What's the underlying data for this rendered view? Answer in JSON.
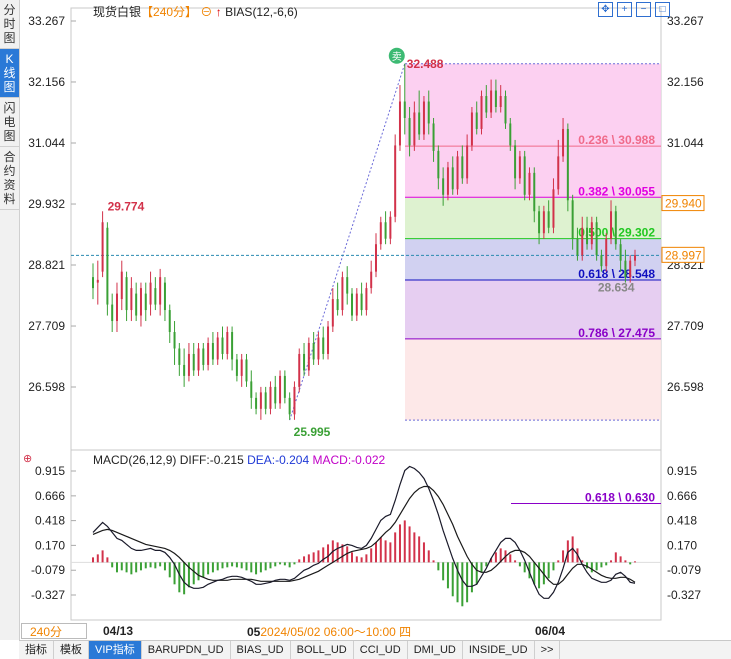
{
  "side_tabs": [
    "分时图",
    "K线图",
    "闪电图",
    "合约资料"
  ],
  "header": {
    "instrument": "现货白银",
    "period": "【240分】",
    "indicator": "BIAS(12,-6,6)"
  },
  "toolbar_icons": [
    "move-icon",
    "zoom-in-icon",
    "zoom-out-icon",
    "fullscreen-icon"
  ],
  "macd_header": {
    "name": "MACD(26,12,9)",
    "diff": "DIFF:-0.215",
    "dea": "DEA:-0.204",
    "macd": "MACD:-0.022"
  },
  "bottom_tabs": [
    "指标",
    "模板",
    "VIP指标",
    "BARUPDN_UD",
    "BIAS_UD",
    "BOLL_UD",
    "CCI_UD",
    "DMI_UD",
    "INSIDE_UD",
    ">>"
  ],
  "period_box": "240分",
  "crosshair_time": "2024/05/02 06:00～10:00 四",
  "x_labels": {
    "left": "04/13",
    "right": "06/04",
    "partial": "05"
  },
  "chart_data": [
    {
      "type": "candlestick",
      "title": "现货白银",
      "yticks": [
        "33.267",
        "32.156",
        "31.044",
        "29.932",
        "28.821",
        "27.709",
        "26.598"
      ],
      "ylim": [
        26.0,
        33.3
      ],
      "annotations": {
        "high": "32.488",
        "low": "25.995",
        "local_high": "29.774",
        "last_cross": "28.634",
        "marker": "卖"
      },
      "price_tags": [
        {
          "value": "29.940",
          "color": "#f08300"
        },
        {
          "value": "28.997",
          "color": "#f08300"
        }
      ],
      "fibonacci": [
        {
          "label": "0.236 \\ 30.988",
          "value": 30.988,
          "color": "#f06a8a",
          "fill": "#fcc8ee"
        },
        {
          "label": "0.382 \\ 30.055",
          "value": 30.055,
          "color": "#e000e0",
          "fill": "#d8f0c8"
        },
        {
          "label": "0.500 \\ 29.302",
          "value": 29.302,
          "color": "#22c822",
          "fill": "#c9c9ee"
        },
        {
          "label": "0.618 \\ 28.548",
          "value": 28.548,
          "color": "#1010c0",
          "fill": "#e2c6ee"
        },
        {
          "label": "0.786 \\ 27.475",
          "value": 27.475,
          "color": "#8a00c8",
          "fill": "#fde4e4"
        }
      ],
      "candles": [
        [
          28.6,
          28.4,
          28.85,
          28.2
        ],
        [
          28.5,
          28.55,
          28.9,
          28.1
        ],
        [
          28.7,
          29.6,
          29.8,
          28.6
        ],
        [
          29.5,
          28.1,
          29.6,
          27.9
        ],
        [
          28.1,
          27.8,
          28.3,
          27.6
        ],
        [
          27.8,
          28.3,
          28.5,
          27.6
        ],
        [
          28.2,
          28.7,
          28.9,
          28.0
        ],
        [
          28.6,
          28.0,
          28.7,
          27.8
        ],
        [
          28.0,
          28.4,
          28.6,
          27.8
        ],
        [
          28.3,
          27.9,
          28.5,
          27.8
        ],
        [
          27.9,
          28.4,
          28.5,
          27.7
        ],
        [
          28.3,
          28.0,
          28.5,
          27.8
        ],
        [
          28.1,
          28.5,
          28.7,
          27.9
        ],
        [
          28.4,
          28.1,
          28.6,
          28.0
        ],
        [
          28.1,
          28.6,
          28.75,
          27.9
        ],
        [
          28.5,
          28.0,
          28.6,
          27.8
        ],
        [
          28.0,
          27.6,
          28.1,
          27.4
        ],
        [
          27.6,
          27.3,
          27.8,
          27.0
        ],
        [
          27.3,
          27.0,
          27.4,
          26.8
        ],
        [
          27.0,
          26.8,
          27.3,
          26.6
        ],
        [
          26.8,
          27.2,
          27.4,
          26.7
        ],
        [
          27.2,
          26.9,
          27.4,
          26.8
        ],
        [
          26.9,
          27.3,
          27.4,
          26.8
        ],
        [
          27.3,
          27.0,
          27.4,
          26.9
        ],
        [
          27.0,
          27.4,
          27.5,
          26.9
        ],
        [
          27.4,
          27.1,
          27.6,
          27.0
        ],
        [
          27.1,
          27.5,
          27.6,
          27.0
        ],
        [
          27.5,
          27.2,
          27.7,
          27.1
        ],
        [
          27.2,
          27.6,
          27.7,
          27.1
        ],
        [
          27.6,
          27.1,
          27.7,
          26.9
        ],
        [
          27.1,
          26.8,
          27.2,
          26.7
        ],
        [
          26.8,
          27.1,
          27.2,
          26.6
        ],
        [
          27.1,
          26.7,
          27.2,
          26.6
        ],
        [
          26.7,
          26.4,
          26.9,
          26.2
        ],
        [
          26.4,
          26.2,
          26.5,
          26.1
        ],
        [
          26.2,
          26.5,
          26.6,
          26.0
        ],
        [
          26.5,
          26.2,
          26.6,
          26.1
        ],
        [
          26.2,
          26.6,
          26.7,
          26.1
        ],
        [
          26.6,
          26.3,
          26.8,
          26.2
        ],
        [
          26.3,
          26.8,
          26.9,
          26.2
        ],
        [
          26.8,
          26.4,
          26.9,
          26.3
        ],
        [
          26.4,
          26.1,
          26.5,
          26.0
        ],
        [
          26.1,
          26.6,
          26.7,
          26.0
        ],
        [
          26.6,
          27.2,
          27.3,
          26.5
        ],
        [
          27.2,
          26.9,
          27.4,
          26.8
        ],
        [
          26.9,
          27.4,
          27.5,
          26.8
        ],
        [
          27.4,
          27.1,
          27.6,
          27.0
        ],
        [
          27.1,
          27.5,
          27.6,
          27.0
        ],
        [
          27.5,
          27.2,
          27.7,
          27.1
        ],
        [
          27.2,
          27.7,
          27.8,
          27.1
        ],
        [
          27.7,
          28.2,
          28.4,
          27.6
        ],
        [
          28.2,
          28.0,
          28.5,
          27.9
        ],
        [
          28.0,
          28.6,
          28.7,
          27.9
        ],
        [
          28.6,
          28.3,
          28.8,
          28.1
        ],
        [
          28.3,
          27.9,
          28.4,
          27.8
        ],
        [
          27.9,
          28.3,
          28.4,
          27.8
        ],
        [
          28.3,
          28.0,
          28.5,
          27.9
        ],
        [
          28.0,
          28.4,
          28.5,
          27.9
        ],
        [
          28.4,
          28.7,
          28.9,
          28.3
        ],
        [
          28.7,
          29.2,
          29.4,
          28.6
        ],
        [
          29.2,
          29.6,
          29.7,
          29.1
        ],
        [
          29.6,
          29.3,
          29.8,
          29.2
        ],
        [
          29.3,
          29.7,
          29.8,
          29.2
        ],
        [
          29.7,
          31.0,
          31.2,
          29.6
        ],
        [
          31.0,
          31.8,
          32.1,
          30.9
        ],
        [
          31.8,
          31.5,
          32.49,
          31.2
        ],
        [
          31.5,
          31.0,
          31.7,
          30.8
        ],
        [
          31.0,
          31.6,
          31.8,
          30.9
        ],
        [
          31.6,
          31.2,
          32.0,
          31.1
        ],
        [
          31.2,
          31.8,
          31.9,
          31.1
        ],
        [
          31.8,
          31.4,
          32.0,
          31.2
        ],
        [
          31.4,
          30.9,
          31.5,
          30.7
        ],
        [
          30.9,
          30.4,
          31.0,
          30.2
        ],
        [
          30.4,
          30.1,
          30.6,
          29.9
        ],
        [
          30.1,
          30.6,
          30.7,
          30.0
        ],
        [
          30.6,
          30.2,
          30.8,
          30.1
        ],
        [
          30.2,
          30.8,
          30.9,
          30.1
        ],
        [
          30.8,
          30.4,
          31.0,
          30.3
        ],
        [
          30.4,
          31.0,
          31.2,
          30.3
        ],
        [
          31.0,
          31.6,
          31.7,
          30.9
        ],
        [
          31.6,
          31.3,
          31.8,
          31.2
        ],
        [
          31.3,
          31.9,
          32.0,
          31.2
        ],
        [
          31.9,
          31.6,
          32.1,
          31.5
        ],
        [
          31.6,
          32.0,
          32.2,
          31.5
        ],
        [
          32.0,
          31.7,
          32.2,
          31.6
        ],
        [
          31.7,
          31.9,
          32.1,
          31.6
        ],
        [
          31.9,
          31.4,
          32.0,
          31.3
        ],
        [
          31.4,
          31.0,
          31.5,
          30.9
        ],
        [
          31.0,
          30.4,
          31.1,
          30.2
        ],
        [
          30.4,
          30.8,
          30.9,
          30.3
        ],
        [
          30.8,
          30.1,
          30.9,
          30.0
        ],
        [
          30.1,
          30.5,
          30.6,
          30.0
        ],
        [
          30.5,
          29.8,
          30.6,
          29.6
        ],
        [
          29.8,
          29.4,
          29.9,
          29.2
        ],
        [
          29.4,
          29.8,
          29.9,
          29.3
        ],
        [
          29.8,
          29.5,
          30.0,
          29.4
        ],
        [
          29.5,
          30.2,
          30.4,
          29.4
        ],
        [
          30.2,
          30.8,
          31.1,
          30.1
        ],
        [
          30.8,
          31.3,
          31.5,
          30.7
        ],
        [
          31.3,
          30.0,
          31.4,
          29.8
        ],
        [
          30.0,
          29.3,
          30.1,
          29.1
        ],
        [
          29.3,
          29.0,
          29.5,
          28.9
        ],
        [
          29.0,
          29.5,
          29.7,
          28.9
        ],
        [
          29.5,
          29.2,
          29.7,
          29.1
        ],
        [
          29.2,
          29.6,
          29.7,
          29.1
        ],
        [
          29.6,
          29.0,
          29.7,
          28.9
        ],
        [
          29.0,
          28.8,
          29.1,
          28.7
        ],
        [
          28.8,
          29.3,
          29.4,
          28.7
        ],
        [
          29.3,
          29.8,
          30.0,
          29.2
        ],
        [
          29.8,
          29.2,
          29.9,
          29.1
        ],
        [
          29.2,
          28.9,
          29.3,
          28.7
        ],
        [
          28.9,
          28.6,
          29.1,
          28.5
        ],
        [
          28.6,
          28.9,
          29.0,
          28.5
        ],
        [
          28.9,
          29.0,
          29.1,
          28.8
        ]
      ]
    },
    {
      "type": "macd",
      "title": "MACD(26,12,9)",
      "yticks": [
        "0.915",
        "0.666",
        "0.418",
        "0.170",
        "-0.079",
        "-0.327"
      ],
      "ylim": [
        -0.45,
        1.0
      ],
      "fib_label": "0.618 \\ 0.630",
      "hist": [
        0.05,
        0.08,
        0.12,
        0.05,
        -0.05,
        -0.1,
        -0.08,
        -0.1,
        -0.12,
        -0.1,
        -0.08,
        -0.06,
        -0.05,
        -0.06,
        -0.04,
        -0.08,
        -0.15,
        -0.22,
        -0.3,
        -0.32,
        -0.25,
        -0.22,
        -0.18,
        -0.15,
        -0.12,
        -0.1,
        -0.08,
        -0.06,
        -0.05,
        -0.04,
        -0.05,
        -0.06,
        -0.08,
        -0.1,
        -0.12,
        -0.1,
        -0.08,
        -0.06,
        -0.04,
        -0.02,
        -0.03,
        -0.05,
        -0.02,
        0.03,
        0.06,
        0.08,
        0.1,
        0.12,
        0.15,
        0.18,
        0.22,
        0.2,
        0.18,
        0.16,
        0.1,
        0.06,
        0.05,
        0.08,
        0.14,
        0.2,
        0.25,
        0.22,
        0.2,
        0.3,
        0.38,
        0.42,
        0.36,
        0.3,
        0.26,
        0.2,
        0.12,
        0.02,
        -0.08,
        -0.18,
        -0.26,
        -0.34,
        -0.4,
        -0.44,
        -0.4,
        -0.3,
        -0.22,
        -0.1,
        -0.04,
        0.04,
        0.1,
        0.14,
        0.12,
        0.08,
        0.02,
        -0.04,
        -0.1,
        -0.16,
        -0.22,
        -0.26,
        -0.22,
        -0.16,
        -0.08,
        0.02,
        0.12,
        0.22,
        0.26,
        0.14,
        0.02,
        -0.06,
        -0.1,
        -0.08,
        -0.05,
        -0.03,
        0.02,
        0.1,
        0.06,
        0.02,
        -0.02,
        0.01
      ],
      "diff": [
        0.3,
        0.35,
        0.4,
        0.36,
        0.3,
        0.24,
        0.22,
        0.18,
        0.14,
        0.12,
        0.12,
        0.13,
        0.14,
        0.12,
        0.12,
        0.1,
        0.05,
        -0.02,
        -0.12,
        -0.2,
        -0.24,
        -0.26,
        -0.26,
        -0.25,
        -0.22,
        -0.2,
        -0.18,
        -0.17,
        -0.15,
        -0.14,
        -0.14,
        -0.15,
        -0.17,
        -0.19,
        -0.22,
        -0.22,
        -0.21,
        -0.2,
        -0.18,
        -0.17,
        -0.17,
        -0.18,
        -0.16,
        -0.12,
        -0.08,
        -0.06,
        -0.03,
        -0.01,
        0.03,
        0.06,
        0.11,
        0.14,
        0.16,
        0.18,
        0.17,
        0.15,
        0.14,
        0.17,
        0.24,
        0.33,
        0.42,
        0.46,
        0.48,
        0.62,
        0.78,
        0.92,
        0.96,
        0.94,
        0.9,
        0.84,
        0.74,
        0.62,
        0.48,
        0.32,
        0.18,
        0.04,
        -0.08,
        -0.18,
        -0.24,
        -0.24,
        -0.22,
        -0.14,
        -0.06,
        0.04,
        0.12,
        0.2,
        0.24,
        0.24,
        0.2,
        0.12,
        0.02,
        -0.1,
        -0.22,
        -0.32,
        -0.36,
        -0.36,
        -0.3,
        -0.2,
        -0.06,
        0.1,
        0.14,
        0.08,
        -0.02,
        -0.1,
        -0.16,
        -0.18,
        -0.2,
        -0.2,
        -0.18,
        -0.12,
        -0.1,
        -0.14,
        -0.2,
        -0.21
      ],
      "dea": [
        0.28,
        0.3,
        0.32,
        0.33,
        0.32,
        0.3,
        0.28,
        0.26,
        0.24,
        0.22,
        0.2,
        0.18,
        0.17,
        0.16,
        0.15,
        0.14,
        0.12,
        0.09,
        0.05,
        0.0,
        -0.05,
        -0.09,
        -0.13,
        -0.15,
        -0.17,
        -0.18,
        -0.18,
        -0.18,
        -0.18,
        -0.17,
        -0.17,
        -0.17,
        -0.17,
        -0.17,
        -0.18,
        -0.19,
        -0.19,
        -0.19,
        -0.19,
        -0.19,
        -0.19,
        -0.19,
        -0.18,
        -0.17,
        -0.15,
        -0.13,
        -0.11,
        -0.09,
        -0.06,
        -0.03,
        0.0,
        0.03,
        0.06,
        0.09,
        0.11,
        0.12,
        0.13,
        0.14,
        0.16,
        0.2,
        0.25,
        0.3,
        0.34,
        0.4,
        0.48,
        0.56,
        0.64,
        0.7,
        0.74,
        0.76,
        0.76,
        0.72,
        0.66,
        0.58,
        0.48,
        0.38,
        0.26,
        0.16,
        0.06,
        -0.02,
        -0.08,
        -0.1,
        -0.1,
        -0.08,
        -0.04,
        0.01,
        0.06,
        0.1,
        0.12,
        0.12,
        0.1,
        0.06,
        0.0,
        -0.06,
        -0.12,
        -0.18,
        -0.22,
        -0.22,
        -0.18,
        -0.12,
        -0.06,
        -0.02,
        -0.02,
        -0.04,
        -0.07,
        -0.1,
        -0.13,
        -0.15,
        -0.16,
        -0.16,
        -0.15,
        -0.15,
        -0.17,
        -0.2
      ]
    }
  ]
}
